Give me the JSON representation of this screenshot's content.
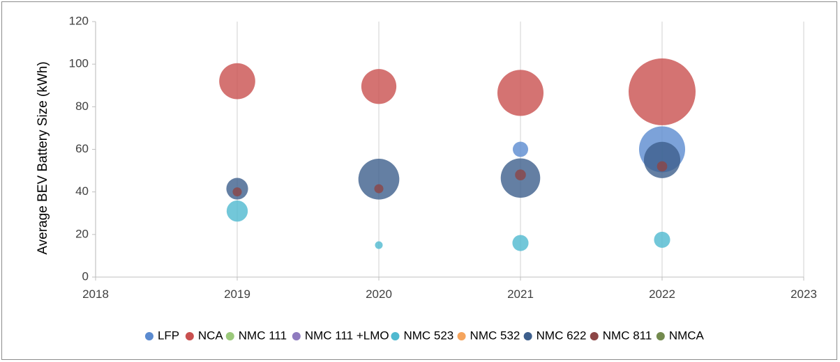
{
  "chart_data": {
    "type": "bubble",
    "title": "",
    "xlabel": "",
    "ylabel": "Average BEV Battery Size (kWh)",
    "xlim": [
      2018,
      2023
    ],
    "ylim": [
      0,
      120
    ],
    "x_ticks": [
      2018,
      2019,
      2020,
      2021,
      2022,
      2023
    ],
    "y_ticks": [
      0,
      20,
      40,
      60,
      80,
      100,
      120
    ],
    "grid": "vertical",
    "legend_position": "bottom",
    "series": [
      {
        "name": "LFP",
        "color": "#5b8bd0",
        "points": [
          {
            "x": 2021,
            "y": 60,
            "size": 1.0
          },
          {
            "x": 2022,
            "y": 60,
            "size": 9.0
          }
        ]
      },
      {
        "name": "NCA",
        "color": "#c9504f",
        "points": [
          {
            "x": 2019,
            "y": 92,
            "size": 5.5
          },
          {
            "x": 2020,
            "y": 89.5,
            "size": 5.2
          },
          {
            "x": 2021,
            "y": 86.5,
            "size": 9.0
          },
          {
            "x": 2022,
            "y": 87,
            "size": 19.0
          }
        ]
      },
      {
        "name": "NMC 111",
        "color": "#9bc97b",
        "points": []
      },
      {
        "name": "NMC 111 +LMO",
        "color": "#8f7bbf",
        "points": []
      },
      {
        "name": "NMC 523",
        "color": "#4fb9d0",
        "points": [
          {
            "x": 2019,
            "y": 31,
            "size": 1.9
          },
          {
            "x": 2020,
            "y": 15,
            "size": 0.25
          },
          {
            "x": 2021,
            "y": 16,
            "size": 1.1
          },
          {
            "x": 2022,
            "y": 17.5,
            "size": 1.1
          }
        ]
      },
      {
        "name": "NMC 532",
        "color": "#f5a45d",
        "points": []
      },
      {
        "name": "NMC 622",
        "color": "#3d5f8c",
        "points": [
          {
            "x": 2019,
            "y": 41.5,
            "size": 2.0
          },
          {
            "x": 2020,
            "y": 46,
            "size": 7.1
          },
          {
            "x": 2021,
            "y": 46.5,
            "size": 6.6
          },
          {
            "x": 2022,
            "y": 55,
            "size": 5.6
          }
        ]
      },
      {
        "name": "NMC 811",
        "color": "#8c4646",
        "points": [
          {
            "x": 2019,
            "y": 40,
            "size": 0.35
          },
          {
            "x": 2020,
            "y": 41.5,
            "size": 0.35
          },
          {
            "x": 2021,
            "y": 48,
            "size": 0.5
          },
          {
            "x": 2022,
            "y": 52,
            "size": 0.45
          }
        ]
      },
      {
        "name": "NMCA",
        "color": "#738a4e",
        "points": []
      }
    ]
  }
}
